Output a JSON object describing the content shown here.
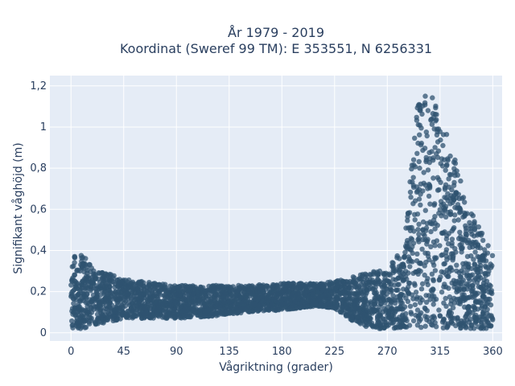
{
  "chart_data": {
    "type": "scatter",
    "title_line1": "År 1979 - 2019",
    "title_line2": "Koordinat (Sweref 99 TM): E 353551, N 6256331",
    "xlabel": "Vågriktning (grader)",
    "ylabel": "Signifikant våghöjd (m)",
    "xlim": [
      -18,
      368
    ],
    "ylim": [
      -0.04,
      1.25
    ],
    "x_ticks": [
      0,
      45,
      90,
      135,
      180,
      225,
      270,
      315,
      360
    ],
    "y_ticks": [
      0,
      0.2,
      0.4,
      0.6,
      0.8,
      1,
      1.2
    ],
    "y_tick_labels": [
      "0",
      "0,2",
      "0,4",
      "0,6",
      "0,8",
      "1",
      "1,2"
    ],
    "marker_color": "#2f5370",
    "plot_bg": "#e5ecf6",
    "grid": true,
    "envelope": [
      {
        "x": 0,
        "y_min": 0.02,
        "y_max": 0.4
      },
      {
        "x": 10,
        "y_min": 0.02,
        "y_max": 0.38
      },
      {
        "x": 20,
        "y_min": 0.04,
        "y_max": 0.3
      },
      {
        "x": 30,
        "y_min": 0.05,
        "y_max": 0.3
      },
      {
        "x": 45,
        "y_min": 0.07,
        "y_max": 0.26
      },
      {
        "x": 60,
        "y_min": 0.07,
        "y_max": 0.25
      },
      {
        "x": 90,
        "y_min": 0.07,
        "y_max": 0.23
      },
      {
        "x": 120,
        "y_min": 0.08,
        "y_max": 0.23
      },
      {
        "x": 150,
        "y_min": 0.1,
        "y_max": 0.23
      },
      {
        "x": 180,
        "y_min": 0.11,
        "y_max": 0.24
      },
      {
        "x": 210,
        "y_min": 0.13,
        "y_max": 0.24
      },
      {
        "x": 225,
        "y_min": 0.12,
        "y_max": 0.25
      },
      {
        "x": 240,
        "y_min": 0.06,
        "y_max": 0.27
      },
      {
        "x": 255,
        "y_min": 0.02,
        "y_max": 0.3
      },
      {
        "x": 270,
        "y_min": 0.02,
        "y_max": 0.3
      },
      {
        "x": 285,
        "y_min": 0.02,
        "y_max": 0.45
      },
      {
        "x": 295,
        "y_min": 0.02,
        "y_max": 1.1
      },
      {
        "x": 305,
        "y_min": 0.02,
        "y_max": 1.2
      },
      {
        "x": 315,
        "y_min": 0.02,
        "y_max": 1.05
      },
      {
        "x": 325,
        "y_min": 0.02,
        "y_max": 0.9
      },
      {
        "x": 335,
        "y_min": 0.02,
        "y_max": 0.7
      },
      {
        "x": 345,
        "y_min": 0.02,
        "y_max": 0.55
      },
      {
        "x": 355,
        "y_min": 0.02,
        "y_max": 0.45
      },
      {
        "x": 360,
        "y_min": 0.02,
        "y_max": 0.4
      }
    ]
  }
}
